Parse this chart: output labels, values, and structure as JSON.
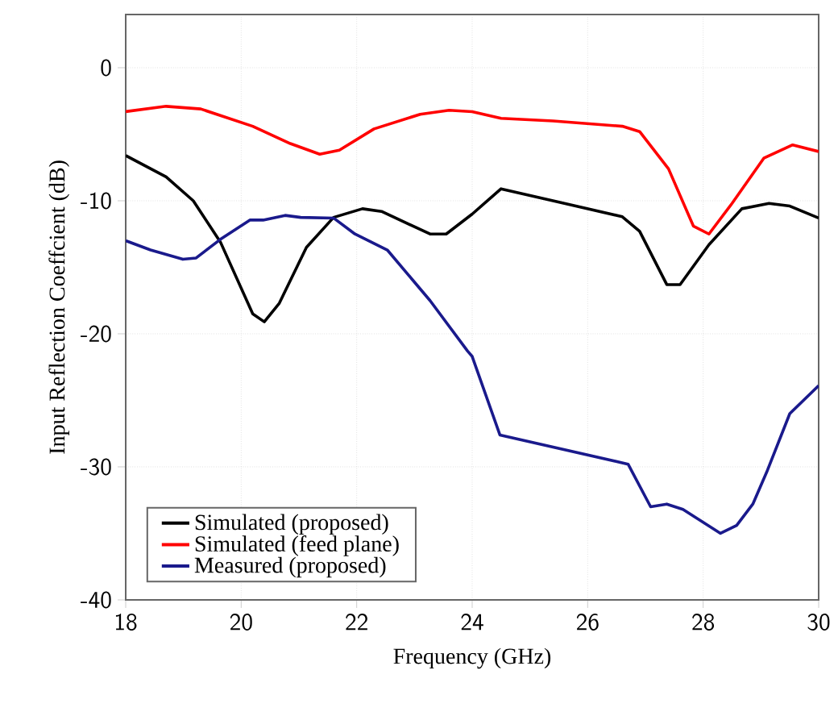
{
  "chart_data": {
    "type": "line",
    "xlabel": "Frequency (GHz)",
    "ylabel": "Input Reflection Coeffcient (dB)",
    "xlim": [
      18,
      30
    ],
    "ylim": [
      -40,
      4
    ],
    "xticks": [
      18,
      20,
      22,
      24,
      26,
      28,
      30
    ],
    "yticks": [
      -40,
      -30,
      -20,
      -10,
      0
    ],
    "grid": true,
    "legend": "bottom left",
    "series": [
      {
        "name": "Simulated (proposed)",
        "color": "#000000",
        "x": [
          18,
          18.7,
          19.17,
          19.64,
          20.2,
          20.4,
          20.66,
          21.13,
          21.6,
          22.1,
          22.43,
          23.27,
          23.55,
          24.0,
          24.5,
          25.4,
          26.6,
          26.9,
          27.37,
          27.6,
          28.1,
          28.67,
          29.14,
          29.5,
          30
        ],
        "values": [
          -6.6,
          -8.2,
          -10.0,
          -13.1,
          -18.5,
          -19.1,
          -17.7,
          -13.5,
          -11.25,
          -10.6,
          -10.8,
          -12.5,
          -12.5,
          -11.0,
          -9.1,
          -10.0,
          -11.2,
          -12.3,
          -16.3,
          -16.3,
          -13.3,
          -10.6,
          -10.2,
          -10.4,
          -11.3
        ]
      },
      {
        "name": "Simulated (feed plane)",
        "color": "#ff0000",
        "x": [
          18,
          18.7,
          19.3,
          20.2,
          20.85,
          21.36,
          21.7,
          22.3,
          23.1,
          23.6,
          24.0,
          24.5,
          25.4,
          26.6,
          26.9,
          27.4,
          27.83,
          28.1,
          28.5,
          29.05,
          29.55,
          30
        ],
        "values": [
          -3.3,
          -2.9,
          -3.1,
          -4.4,
          -5.7,
          -6.5,
          -6.2,
          -4.6,
          -3.5,
          -3.2,
          -3.3,
          -3.8,
          -4.0,
          -4.4,
          -4.8,
          -7.6,
          -11.9,
          -12.5,
          -10.2,
          -6.8,
          -5.8,
          -6.3
        ]
      },
      {
        "name": "Measured (proposed)",
        "color": "#1a1a8c",
        "x": [
          18,
          18.43,
          18.99,
          19.22,
          19.64,
          20.15,
          20.38,
          20.76,
          21.03,
          21.6,
          21.97,
          22.53,
          23.27,
          23.92,
          24.0,
          24.48,
          26.7,
          27.09,
          27.37,
          27.65,
          28.3,
          28.58,
          28.86,
          29.1,
          29.5,
          30
        ],
        "values": [
          -13.0,
          -13.7,
          -14.4,
          -14.3,
          -12.9,
          -11.45,
          -11.45,
          -11.1,
          -11.25,
          -11.3,
          -12.5,
          -13.7,
          -17.5,
          -21.3,
          -21.7,
          -27.6,
          -29.8,
          -33.0,
          -32.8,
          -33.2,
          -35.0,
          -34.4,
          -32.8,
          -30.4,
          -26.0,
          -23.9
        ]
      }
    ]
  }
}
